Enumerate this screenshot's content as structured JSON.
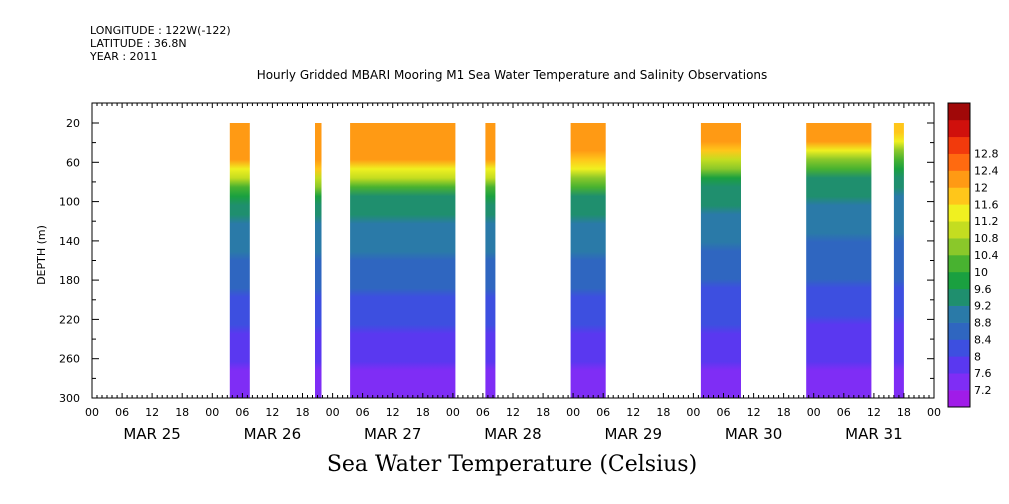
{
  "header": {
    "longitude": "LONGITUDE : 122W(-122)",
    "latitude": "LATITUDE : 36.8N",
    "year": "YEAR : 2011"
  },
  "chart_data": {
    "type": "heatmap",
    "title": "Hourly Gridded MBARI Mooring M1 Sea Water Temperature and Salinity Observations",
    "xlabel": "Sea Water Temperature (Celsius)",
    "ylabel": "DEPTH (m)",
    "x_range_hours": [
      0,
      168
    ],
    "x_start": "2011-03-25T00:00",
    "x_tick_hours": [
      0,
      6,
      12,
      18
    ],
    "x_day_labels": [
      "MAR 25",
      "MAR 26",
      "MAR 27",
      "MAR 28",
      "MAR 29",
      "MAR 30",
      "MAR 31"
    ],
    "ylim": [
      20,
      300
    ],
    "y_ticks": [
      20,
      60,
      100,
      140,
      180,
      220,
      260,
      300
    ],
    "colorbar_levels": [
      7.2,
      7.6,
      8,
      8.4,
      8.8,
      9.2,
      9.6,
      10,
      10.4,
      10.8,
      11.2,
      11.6,
      12,
      12.4,
      12.8
    ],
    "colorbar_colors": [
      "#a01ce8",
      "#7f2df5",
      "#5a38f0",
      "#3d4fe0",
      "#2f66c0",
      "#2a7aa8",
      "#1f8f6e",
      "#1aa040",
      "#48b230",
      "#8ac82a",
      "#c4dd20",
      "#f0f020",
      "#ffc61a",
      "#ff9a14",
      "#ff6a10",
      "#f23a0c",
      "#d0100c",
      "#a00808"
    ],
    "data_segments": [
      {
        "start_hour": 27.5,
        "end_hour": 31.5,
        "surface_temp": 12.1,
        "thermocline_depth": 68
      },
      {
        "start_hour": 44.5,
        "end_hour": 45.8,
        "surface_temp": 12.0,
        "thermocline_depth": 72
      },
      {
        "start_hour": 51.5,
        "end_hour": 72.5,
        "surface_temp": 12.2,
        "thermocline_depth": 66
      },
      {
        "start_hour": 78.5,
        "end_hour": 80.5,
        "surface_temp": 12.0,
        "thermocline_depth": 70
      },
      {
        "start_hour": 95.5,
        "end_hour": 102.5,
        "surface_temp": 12.1,
        "thermocline_depth": 65
      },
      {
        "start_hour": 121.5,
        "end_hour": 129.5,
        "surface_temp": 12.0,
        "thermocline_depth": 55
      },
      {
        "start_hour": 142.5,
        "end_hour": 155.5,
        "surface_temp": 12.3,
        "thermocline_depth": 45
      },
      {
        "start_hour": 160,
        "end_hour": 162,
        "surface_temp": 11.9,
        "thermocline_depth": 40
      }
    ],
    "deep_temp": 7.3
  }
}
